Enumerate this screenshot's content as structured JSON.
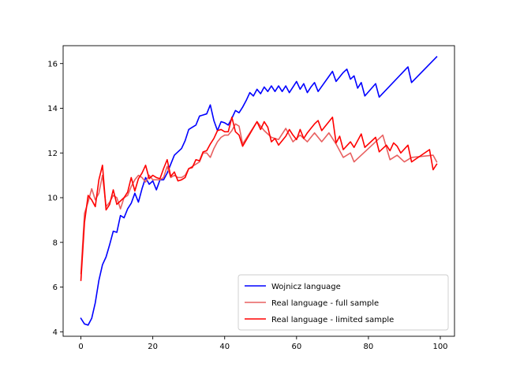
{
  "chart_data": {
    "type": "line",
    "title": "",
    "xlabel": "",
    "ylabel": "",
    "xlim": [
      -4.95,
      103.95
    ],
    "ylim": [
      3.8,
      16.8
    ],
    "xticks": [
      0,
      20,
      40,
      60,
      80,
      100
    ],
    "yticks": [
      4,
      6,
      8,
      10,
      12,
      14,
      16
    ],
    "xtick_labels": [
      "0",
      "20",
      "40",
      "60",
      "80",
      "100"
    ],
    "ytick_labels": [
      "4",
      "6",
      "8",
      "10",
      "12",
      "14",
      "16"
    ],
    "grid": false,
    "legend": "lower-right",
    "series": [
      {
        "name": "Wojnicz language",
        "color": "#0000ff",
        "points": [
          [
            0,
            4.6
          ],
          [
            1,
            4.35
          ],
          [
            2,
            4.3
          ],
          [
            3,
            4.6
          ],
          [
            4,
            5.3
          ],
          [
            5,
            6.3
          ],
          [
            6,
            7.0
          ],
          [
            7,
            7.35
          ],
          [
            8,
            7.9
          ],
          [
            9,
            8.5
          ],
          [
            10,
            8.45
          ],
          [
            11,
            9.2
          ],
          [
            12,
            9.1
          ],
          [
            13,
            9.5
          ],
          [
            14,
            9.75
          ],
          [
            15,
            10.2
          ],
          [
            16,
            9.8
          ],
          [
            17,
            10.4
          ],
          [
            18,
            10.9
          ],
          [
            19,
            10.6
          ],
          [
            20,
            10.75
          ],
          [
            21,
            10.35
          ],
          [
            22,
            10.8
          ],
          [
            23,
            10.8
          ],
          [
            24,
            11.1
          ],
          [
            25,
            11.5
          ],
          [
            26,
            11.9
          ],
          [
            27,
            12.05
          ],
          [
            28,
            12.2
          ],
          [
            29,
            12.55
          ],
          [
            30,
            13.05
          ],
          [
            31,
            13.15
          ],
          [
            32,
            13.25
          ],
          [
            33,
            13.65
          ],
          [
            34,
            13.7
          ],
          [
            35,
            13.75
          ],
          [
            36,
            14.15
          ],
          [
            37,
            13.45
          ],
          [
            38,
            13.0
          ],
          [
            39,
            13.4
          ],
          [
            40,
            13.35
          ],
          [
            41,
            13.25
          ],
          [
            42,
            13.55
          ],
          [
            43,
            13.9
          ],
          [
            44,
            13.8
          ],
          [
            45,
            14.05
          ],
          [
            46,
            14.35
          ],
          [
            47,
            14.7
          ],
          [
            48,
            14.55
          ],
          [
            49,
            14.85
          ],
          [
            50,
            14.65
          ],
          [
            51,
            14.95
          ],
          [
            52,
            14.75
          ],
          [
            53,
            15.0
          ],
          [
            54,
            14.75
          ],
          [
            55,
            15.0
          ],
          [
            56,
            14.75
          ],
          [
            57,
            15.0
          ],
          [
            58,
            14.7
          ],
          [
            59,
            14.95
          ],
          [
            60,
            15.2
          ],
          [
            61,
            14.85
          ],
          [
            62,
            15.1
          ],
          [
            63,
            14.7
          ],
          [
            64,
            14.95
          ],
          [
            65,
            15.15
          ],
          [
            66,
            14.75
          ],
          [
            70,
            15.65
          ],
          [
            71,
            15.2
          ],
          [
            73,
            15.6
          ],
          [
            74,
            15.75
          ],
          [
            75,
            15.3
          ],
          [
            76,
            15.45
          ],
          [
            77,
            14.9
          ],
          [
            78,
            15.15
          ],
          [
            79,
            14.55
          ],
          [
            82,
            15.1
          ],
          [
            83,
            14.5
          ],
          [
            91,
            15.85
          ],
          [
            92,
            15.15
          ],
          [
            99,
            16.3
          ]
        ]
      },
      {
        "name": "Real language - full sample",
        "color": "#e86060",
        "points": [
          [
            0,
            6.6
          ],
          [
            1,
            9.3
          ],
          [
            2,
            9.8
          ],
          [
            3,
            10.4
          ],
          [
            4,
            9.9
          ],
          [
            5,
            10.2
          ],
          [
            6,
            11.0
          ],
          [
            7,
            9.6
          ],
          [
            8,
            9.8
          ],
          [
            9,
            10.1
          ],
          [
            10,
            10.0
          ],
          [
            11,
            9.5
          ],
          [
            12,
            10.0
          ],
          [
            13,
            10.1
          ],
          [
            14,
            10.5
          ],
          [
            15,
            10.8
          ],
          [
            16,
            11.0
          ],
          [
            17,
            10.9
          ],
          [
            18,
            10.7
          ],
          [
            19,
            11.0
          ],
          [
            20,
            10.8
          ],
          [
            21,
            10.8
          ],
          [
            22,
            10.8
          ],
          [
            23,
            10.9
          ],
          [
            24,
            11.4
          ],
          [
            25,
            10.9
          ],
          [
            26,
            11.0
          ],
          [
            27,
            10.9
          ],
          [
            28,
            10.9
          ],
          [
            29,
            11.0
          ],
          [
            30,
            11.3
          ],
          [
            31,
            11.4
          ],
          [
            32,
            11.5
          ],
          [
            33,
            11.6
          ],
          [
            34,
            12.0
          ],
          [
            35,
            12.0
          ],
          [
            36,
            11.8
          ],
          [
            37,
            12.2
          ],
          [
            38,
            12.5
          ],
          [
            39,
            12.7
          ],
          [
            40,
            12.8
          ],
          [
            41,
            12.8
          ],
          [
            42,
            13.0
          ],
          [
            43,
            13.3
          ],
          [
            44,
            13.2
          ],
          [
            45,
            12.4
          ],
          [
            49,
            13.4
          ],
          [
            51,
            13.0
          ],
          [
            53,
            12.7
          ],
          [
            55,
            12.6
          ],
          [
            57,
            13.1
          ],
          [
            59,
            12.5
          ],
          [
            61,
            12.8
          ],
          [
            63,
            12.5
          ],
          [
            65,
            12.9
          ],
          [
            67,
            12.5
          ],
          [
            69,
            12.9
          ],
          [
            71,
            12.4
          ],
          [
            73,
            11.8
          ],
          [
            75,
            12.0
          ],
          [
            76,
            11.6
          ],
          [
            84,
            12.8
          ],
          [
            86,
            11.7
          ],
          [
            88,
            11.9
          ],
          [
            90,
            11.6
          ],
          [
            92,
            11.8
          ],
          [
            98,
            11.9
          ],
          [
            99,
            11.6
          ]
        ]
      },
      {
        "name": "Real language - limited sample",
        "color": "#ff0000",
        "points": [
          [
            0,
            6.3
          ],
          [
            1,
            8.9
          ],
          [
            2,
            10.1
          ],
          [
            3,
            9.9
          ],
          [
            4,
            9.6
          ],
          [
            5,
            10.8
          ],
          [
            6,
            11.45
          ],
          [
            7,
            9.45
          ],
          [
            8,
            9.7
          ],
          [
            9,
            10.35
          ],
          [
            10,
            9.7
          ],
          [
            11,
            9.85
          ],
          [
            12,
            10.0
          ],
          [
            13,
            10.25
          ],
          [
            14,
            10.9
          ],
          [
            15,
            10.3
          ],
          [
            16,
            10.85
          ],
          [
            17,
            11.1
          ],
          [
            18,
            11.45
          ],
          [
            19,
            10.85
          ],
          [
            20,
            11.0
          ],
          [
            21,
            10.9
          ],
          [
            22,
            10.85
          ],
          [
            23,
            11.3
          ],
          [
            24,
            11.7
          ],
          [
            25,
            10.95
          ],
          [
            26,
            11.15
          ],
          [
            27,
            10.75
          ],
          [
            28,
            10.8
          ],
          [
            29,
            10.9
          ],
          [
            30,
            11.3
          ],
          [
            31,
            11.35
          ],
          [
            32,
            11.7
          ],
          [
            33,
            11.65
          ],
          [
            34,
            12.05
          ],
          [
            35,
            12.1
          ],
          [
            36,
            12.4
          ],
          [
            37,
            12.65
          ],
          [
            38,
            13.0
          ],
          [
            39,
            13.05
          ],
          [
            40,
            12.95
          ],
          [
            41,
            12.95
          ],
          [
            42,
            13.6
          ],
          [
            43,
            12.95
          ],
          [
            44,
            12.8
          ],
          [
            45,
            12.3
          ],
          [
            49,
            13.4
          ],
          [
            50,
            13.05
          ],
          [
            51,
            13.4
          ],
          [
            52,
            13.15
          ],
          [
            53,
            12.5
          ],
          [
            54,
            12.65
          ],
          [
            55,
            12.35
          ],
          [
            57,
            12.75
          ],
          [
            58,
            13.05
          ],
          [
            59,
            12.8
          ],
          [
            60,
            12.6
          ],
          [
            61,
            13.05
          ],
          [
            62,
            12.65
          ],
          [
            63,
            12.9
          ],
          [
            64,
            13.1
          ],
          [
            65,
            13.3
          ],
          [
            66,
            13.45
          ],
          [
            67,
            13.0
          ],
          [
            70,
            13.6
          ],
          [
            71,
            12.45
          ],
          [
            72,
            12.75
          ],
          [
            73,
            12.15
          ],
          [
            75,
            12.5
          ],
          [
            76,
            12.25
          ],
          [
            78,
            12.85
          ],
          [
            79,
            12.25
          ],
          [
            82,
            12.7
          ],
          [
            83,
            12.05
          ],
          [
            85,
            12.35
          ],
          [
            86,
            12.1
          ],
          [
            87,
            12.45
          ],
          [
            88,
            12.3
          ],
          [
            89,
            12.0
          ],
          [
            91,
            12.35
          ],
          [
            92,
            11.6
          ],
          [
            97,
            12.15
          ],
          [
            98,
            11.25
          ],
          [
            99,
            11.5
          ]
        ]
      }
    ]
  }
}
